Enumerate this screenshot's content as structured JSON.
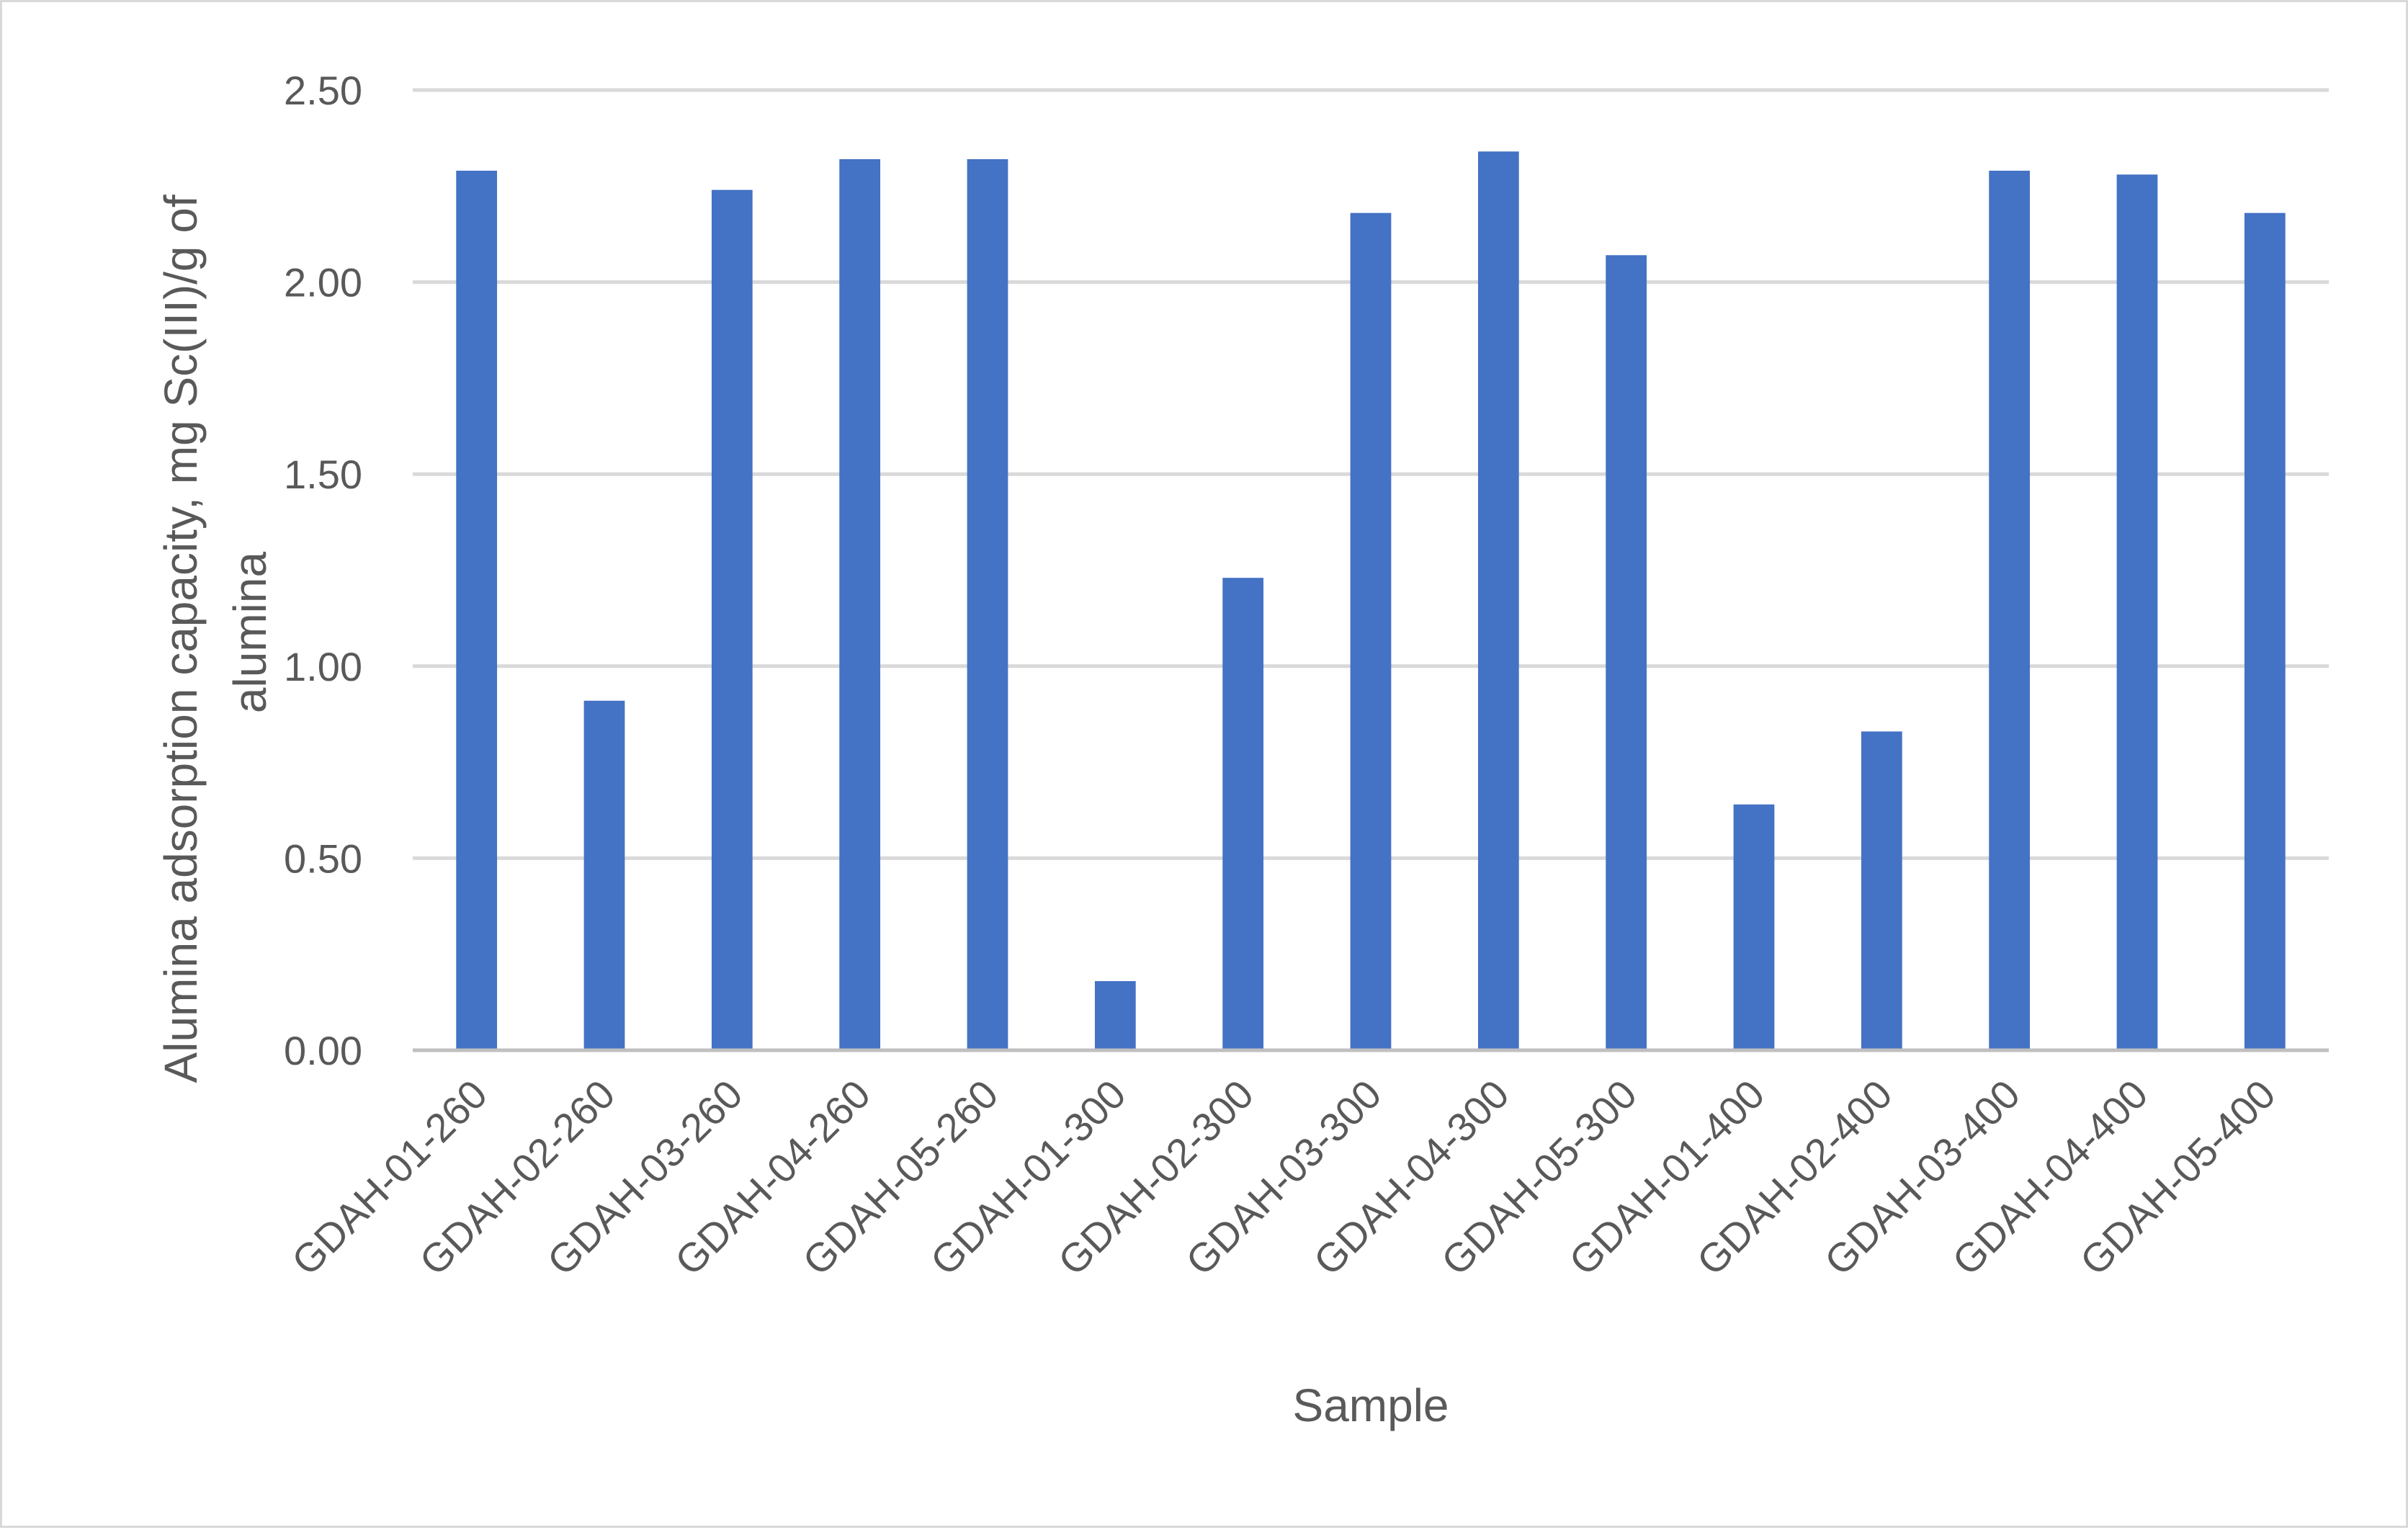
{
  "chart_data": {
    "type": "bar",
    "title": "",
    "xlabel": "Sample",
    "ylabel_lines": [
      "Alumina adsorption capacity, mg Sc(III)/g of",
      "alumina"
    ],
    "ylim": [
      0,
      2.5
    ],
    "y_ticks": [
      "0.00",
      "0.50",
      "1.00",
      "1.50",
      "2.00",
      "2.50"
    ],
    "y_tick_values": [
      0,
      0.5,
      1.0,
      1.5,
      2.0,
      2.5
    ],
    "grid": true,
    "legend": "none",
    "bar_color": "#4472c4",
    "categories": [
      "GDAH-01-260",
      "GDAH-02-260",
      "GDAH-03-260",
      "GDAH-04-260",
      "GDAH-05-260",
      "GDAH-01-300",
      "GDAH-02-300",
      "GDAH-03-300",
      "GDAH-04-300",
      "GDAH-05-300",
      "GDAH-01-400",
      "GDAH-02-400",
      "GDAH-03-400",
      "GDAH-04-400",
      "GDAH-05-400"
    ],
    "values": [
      2.29,
      0.91,
      2.24,
      2.32,
      2.32,
      0.18,
      1.23,
      2.18,
      2.34,
      2.07,
      0.64,
      0.83,
      2.29,
      2.28,
      2.18
    ]
  }
}
